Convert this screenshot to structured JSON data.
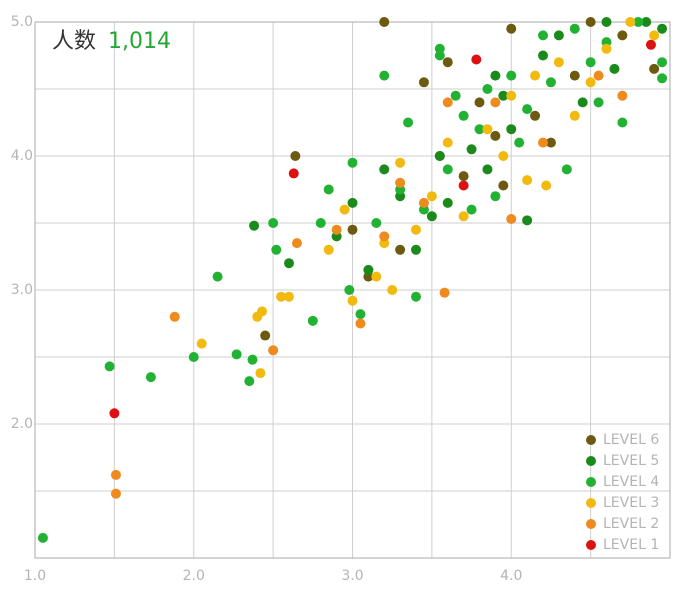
{
  "chart_data": {
    "type": "scatter",
    "title": "人数",
    "count": {
      "value": 1014,
      "label": "1,014"
    },
    "count_color": "#22a833",
    "xlim": [
      1,
      5
    ],
    "ylim": [
      1,
      5
    ],
    "xticks": [
      {
        "value": 1,
        "label": "1.0"
      },
      {
        "value": 2,
        "label": "2.0"
      },
      {
        "value": 3,
        "label": "3.0"
      },
      {
        "value": 4,
        "label": "4.0"
      }
    ],
    "yticks": [
      {
        "value": 2,
        "label": "2.0"
      },
      {
        "value": 3,
        "label": "3.0"
      },
      {
        "value": 4,
        "label": "4.0"
      },
      {
        "value": 5,
        "label": "5.0"
      }
    ],
    "xgrid": [
      1.5,
      2,
      2.5,
      3,
      3.5,
      4,
      4.5,
      5
    ],
    "ygrid": [
      1.5,
      2,
      2.5,
      3,
      3.5,
      4,
      4.5,
      5
    ],
    "legend": "lower right",
    "series": [
      {
        "name": "LEVEL 6",
        "color": "#6b5a10",
        "x": [
          2.45,
          2.64,
          3.0,
          3.1,
          3.3,
          3.45,
          3.55,
          3.95,
          4.9,
          3.2,
          4.0,
          4.4,
          4.15,
          3.7,
          3.8,
          4.5,
          4.7,
          4.25,
          3.6,
          3.9
        ],
        "y": [
          2.66,
          4.0,
          3.45,
          3.1,
          3.3,
          4.55,
          4.0,
          3.78,
          4.65,
          5.0,
          4.95,
          4.6,
          4.3,
          3.85,
          4.4,
          5.0,
          4.9,
          4.1,
          4.7,
          4.15
        ]
      },
      {
        "name": "LEVEL 5",
        "color": "#1a8a1a",
        "x": [
          2.38,
          2.6,
          3.0,
          3.1,
          3.2,
          3.4,
          3.6,
          3.75,
          3.9,
          4.1,
          4.0,
          4.2,
          4.45,
          4.65,
          4.85,
          4.95,
          3.5,
          3.85,
          4.3,
          3.3,
          4.6,
          3.95,
          3.55,
          2.9
        ],
        "y": [
          3.48,
          3.2,
          3.65,
          3.15,
          3.9,
          3.3,
          3.65,
          4.05,
          4.6,
          3.52,
          4.2,
          4.75,
          4.4,
          4.65,
          5.0,
          4.95,
          3.55,
          3.9,
          4.9,
          3.7,
          5.0,
          4.45,
          4.0,
          3.4
        ]
      },
      {
        "name": "LEVEL 4",
        "color": "#22b233",
        "x": [
          1.05,
          1.47,
          1.73,
          2.0,
          2.15,
          2.27,
          2.37,
          2.35,
          2.52,
          2.5,
          2.75,
          2.8,
          2.98,
          3.05,
          3.2,
          3.4,
          3.55,
          3.55,
          4.35,
          4.7,
          4.95,
          4.95,
          3.0,
          3.3,
          3.6,
          3.8,
          4.0,
          4.2,
          4.5,
          3.7,
          3.9,
          4.1,
          4.4,
          4.6,
          3.45,
          3.15,
          4.8,
          3.85,
          4.25,
          3.65,
          2.85,
          4.05,
          3.35,
          4.55,
          3.75
        ],
        "y": [
          1.15,
          2.43,
          2.35,
          2.5,
          3.1,
          2.52,
          2.48,
          2.32,
          3.3,
          3.5,
          2.77,
          3.5,
          3.0,
          2.82,
          4.6,
          2.95,
          4.75,
          4.8,
          3.9,
          4.25,
          4.58,
          4.7,
          3.95,
          3.75,
          3.9,
          4.2,
          4.6,
          4.9,
          4.7,
          4.3,
          3.7,
          4.35,
          4.95,
          4.85,
          3.6,
          3.5,
          5.0,
          4.5,
          4.55,
          4.45,
          3.75,
          4.1,
          4.25,
          4.4,
          3.6
        ]
      },
      {
        "name": "LEVEL 3",
        "color": "#f2b90f",
        "x": [
          2.05,
          2.42,
          2.4,
          2.43,
          2.55,
          2.6,
          3.0,
          3.25,
          3.2,
          2.85,
          3.5,
          3.3,
          3.6,
          4.1,
          4.22,
          4.5,
          4.9,
          3.85,
          4.3,
          4.6,
          3.7,
          4.0,
          3.15,
          2.95,
          4.75,
          4.4,
          3.95,
          3.4,
          4.15
        ],
        "y": [
          2.6,
          2.38,
          2.8,
          2.84,
          2.95,
          2.95,
          2.92,
          3.0,
          3.35,
          3.3,
          3.7,
          3.95,
          4.1,
          3.82,
          3.78,
          4.55,
          4.9,
          4.2,
          4.7,
          4.8,
          3.55,
          4.45,
          3.1,
          3.6,
          5.0,
          4.3,
          4.0,
          3.45,
          4.6
        ]
      },
      {
        "name": "LEVEL 2",
        "color": "#ee8a1e",
        "x": [
          1.51,
          1.51,
          1.88,
          2.5,
          3.05,
          3.58,
          4.0,
          3.2,
          3.6,
          4.7,
          2.9,
          3.3,
          4.2,
          3.9,
          3.45,
          4.55,
          2.65
        ],
        "y": [
          1.62,
          1.48,
          2.8,
          2.55,
          2.75,
          2.98,
          3.53,
          3.4,
          4.4,
          4.45,
          3.45,
          3.8,
          4.1,
          4.4,
          3.65,
          4.6,
          3.35
        ]
      },
      {
        "name": "LEVEL 1",
        "color": "#dd1111",
        "x": [
          1.5,
          2.63,
          3.78,
          4.88,
          3.7
        ],
        "y": [
          2.08,
          3.87,
          4.72,
          4.83,
          3.78
        ]
      }
    ]
  }
}
